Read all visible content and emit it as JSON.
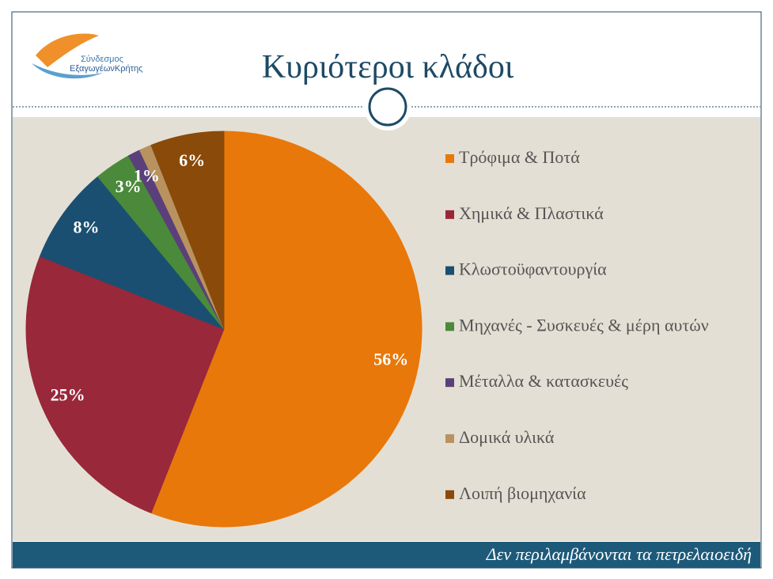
{
  "logo": {
    "line1": "Σύνδεσμος",
    "line2": "ΕξαγωγέωνΚρήτης"
  },
  "chart_data": {
    "type": "pie",
    "title": "Κυριότεροι κλάδοι",
    "categories": [
      "Τρόφιμα & Ποτά",
      "Χημικά & Πλαστικά",
      "Κλωστοϋφαντουργία",
      "Μηχανές - Συσκευές & μέρη αυτών",
      "Μέταλλα & κατασκευές",
      "Δομικά υλικά",
      "Λοιπή βιομηχανία"
    ],
    "values": [
      56,
      25,
      8,
      3,
      1,
      1,
      6
    ],
    "value_labels": [
      "56%",
      "25%",
      "8%",
      "3%",
      "1%",
      null,
      "6%"
    ],
    "colors": [
      "#e8780a",
      "#98283a",
      "#1a4f72",
      "#4a8a3a",
      "#5b3f7a",
      "#b8935f",
      "#8a4a0a"
    ],
    "legend": "right"
  },
  "footer": "Δεν περιλαμβάνονται τα πετρελαιοειδή"
}
